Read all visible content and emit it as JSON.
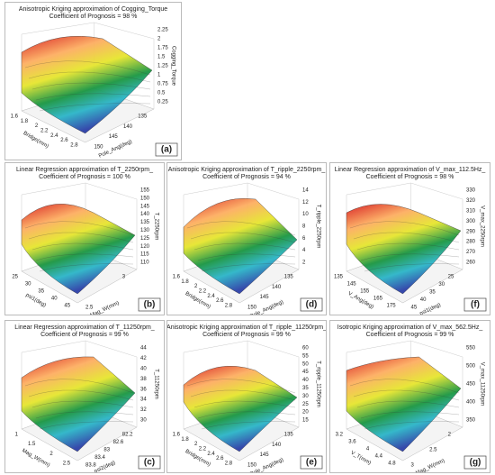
{
  "panels": [
    {
      "title": "Anisotropic Kriging  approximation of Cogging_Torque",
      "subtitle": "Coefficient of Prognosis = 98 %",
      "z_label": "Cogging_Torque",
      "z_ticks": [
        "2.25",
        "2",
        "1.75",
        "1.5",
        "1.25",
        "1",
        "0.75",
        "0.5",
        "0.25"
      ],
      "x_label": "Bridge(mm)",
      "x_ticks": [
        "1.6",
        "1.8",
        "2",
        "2.2",
        "2.4",
        "2.6",
        "2.8"
      ],
      "y_label": "Pole_Ang(deg)",
      "y_ticks": [
        "150",
        "145",
        "140",
        "135"
      ],
      "letter": "(a)"
    },
    {
      "title": "Linear Regression  approximation of T_2250rpm_",
      "subtitle": "Coefficient of Prognosis = 100 %",
      "z_label": "T_2250rpm",
      "z_ticks": [
        "155",
        "150",
        "145",
        "140",
        "135",
        "130",
        "125",
        "120",
        "115",
        "110"
      ],
      "x_label": "psi1(deg)",
      "x_ticks": [
        "25",
        "30",
        "35",
        "40",
        "45"
      ],
      "y_label": "Mag_W(mm)",
      "y_ticks": [
        "2.5",
        "3"
      ],
      "letter": "(b)"
    },
    {
      "title": "Anisotropic Kriging  approximation of T_ripple_2250rpm_",
      "subtitle": "Coefficient of Prognosis = 94 %",
      "z_label": "T_ripple_2250rpm",
      "z_ticks": [
        "14",
        "12",
        "10",
        "8",
        "6",
        "4",
        "2"
      ],
      "x_label": "Bridge(mm)",
      "x_ticks": [
        "1.6",
        "1.8",
        "2",
        "2.2",
        "2.4",
        "2.6",
        "2.8"
      ],
      "y_label": "Pole_Ang(deg)",
      "y_ticks": [
        "150",
        "145",
        "140",
        "135"
      ],
      "letter": "(d)"
    },
    {
      "title": "Linear Regression  approximation of V_max_112.5Hz_",
      "subtitle": "Coefficient of Prognosis = 98 %",
      "z_label": "V_max_2250rpm",
      "z_ticks": [
        "330",
        "320",
        "310",
        "300",
        "290",
        "280",
        "270",
        "260"
      ],
      "x_label": "V_Ang(deg)",
      "x_ticks": [
        "135",
        "145",
        "155",
        "165",
        "175"
      ],
      "y_label": "psi1(deg)",
      "y_ticks": [
        "45",
        "40",
        "35",
        "30",
        "25"
      ],
      "letter": "(f)"
    },
    {
      "title": "Linear Regression  approximation of T_11250rpm_",
      "subtitle": "Coefficient of Prognosis = 99 %",
      "z_label": "T_11250rpm",
      "z_ticks": [
        "44",
        "42",
        "40",
        "38",
        "36",
        "34",
        "32",
        "30"
      ],
      "x_label": "Mag_W(mm)",
      "x_ticks": [
        "1",
        "1.5",
        "2",
        "2.5"
      ],
      "y_label": "psi2(deg)",
      "y_ticks": [
        "83.8",
        "83.4",
        "83",
        "82.6",
        "82.2"
      ],
      "letter": "(c)"
    },
    {
      "title": "Anisotropic Kriging  approximation of T_ripple_11250rpm_",
      "subtitle": "Coefficient of Prognosis = 99 %",
      "z_label": "T_ripple_11250rpm",
      "z_ticks": [
        "60",
        "55",
        "50",
        "45",
        "40",
        "35",
        "30",
        "25",
        "20",
        "15"
      ],
      "x_label": "Bridge(mm)",
      "x_ticks": [
        "1.6",
        "1.8",
        "2",
        "2.2",
        "2.4",
        "2.6",
        "2.8"
      ],
      "y_label": "Pole_Ang(deg)",
      "y_ticks": [
        "150",
        "145",
        "140",
        "135"
      ],
      "letter": "(e)"
    },
    {
      "title": "Isotropic Kriging  approximation of V_max_562.5Hz_",
      "subtitle": "Coefficient of Prognosis = 99 %",
      "z_label": "V_max_11250rpm",
      "z_ticks": [
        "550",
        "500",
        "450",
        "400",
        "350"
      ],
      "x_label": "V_T(mm)",
      "x_ticks": [
        "3.2",
        "3.6",
        "4",
        "4.4",
        "4.8"
      ],
      "y_label": "Mag_W(mm)",
      "y_ticks": [
        "3",
        "2.5",
        "2"
      ],
      "letter": "(g)"
    }
  ]
}
